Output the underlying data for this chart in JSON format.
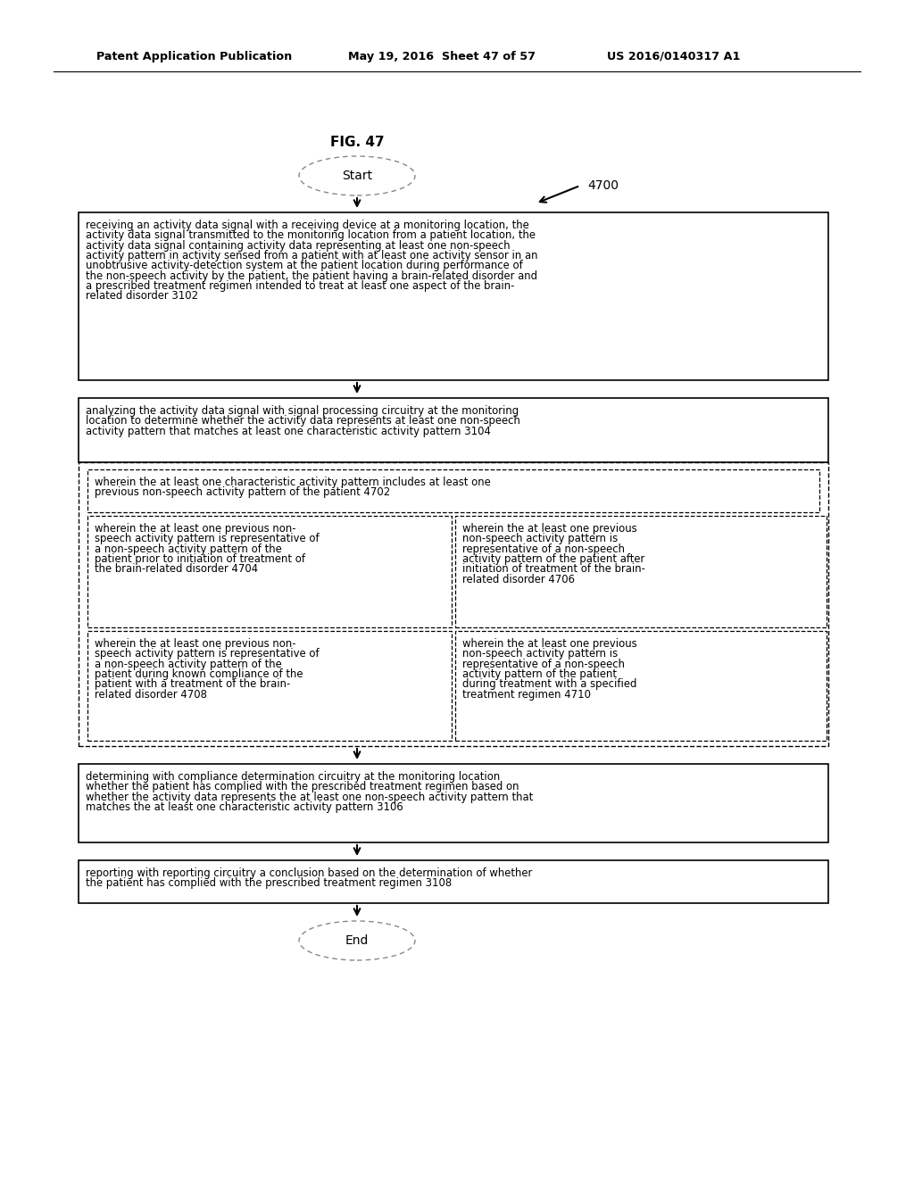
{
  "bg_color": "#ffffff",
  "header_text1": "Patent Application Publication",
  "header_text2": "May 19, 2016  Sheet 47 of 57",
  "header_text3": "US 2016/0140317 A1",
  "fig_label": "FIG. 47",
  "start_label": "Start",
  "end_label": "End",
  "label_4700": "4700",
  "box1_lines": [
    "receiving an activity data signal with a receiving device at a monitoring location, the",
    "activity data signal transmitted to the monitoring location from a patient location, the",
    "activity data signal containing activity data representing at least one non-speech",
    "activity pattern in activity sensed from a patient with at least one activity sensor in an",
    "unobtrusive activity-detection system at the patient location during performance of",
    "the non-speech activity by the patient, the patient having a brain-related disorder and",
    "a prescribed treatment regimen intended to treat at least one aspect of the brain-",
    "related disorder 3102"
  ],
  "box2_lines": [
    "analyzing the activity data signal with signal processing circuitry at the monitoring",
    "location to determine whether the activity data represents at least one non-speech",
    "activity pattern that matches at least one characteristic activity pattern 3104"
  ],
  "box3_lines": [
    "wherein the at least one characteristic activity pattern includes at least one",
    "previous non-speech activity pattern of the patient 4702"
  ],
  "box4a_lines": [
    "wherein the at least one previous non-",
    "speech activity pattern is representative of",
    "a non-speech activity pattern of the",
    "patient prior to initiation of treatment of",
    "the brain-related disorder 4704"
  ],
  "box4b_lines": [
    "wherein the at least one previous",
    "non-speech activity pattern is",
    "representative of a non-speech",
    "activity pattern of the patient after",
    "initiation of treatment of the brain-",
    "related disorder 4706"
  ],
  "box5a_lines": [
    "wherein the at least one previous non-",
    "speech activity pattern is representative of",
    "a non-speech activity pattern of the",
    "patient during known compliance of the",
    "patient with a treatment of the brain-",
    "related disorder 4708"
  ],
  "box5b_lines": [
    "wherein the at least one previous",
    "non-speech activity pattern is",
    "representative of a non-speech",
    "activity pattern of the patient",
    "during treatment with a specified",
    "treatment regimen 4710"
  ],
  "box6_lines": [
    "determining with compliance determination circuitry at the monitoring location",
    "whether the patient has complied with the prescribed treatment regimen based on",
    "whether the activity data represents the at least one non-speech activity pattern that",
    "matches the at least one characteristic activity pattern 3106"
  ],
  "box7_lines": [
    "reporting with reporting circuitry a conclusion based on the determination of whether",
    "the patient has complied with the prescribed treatment regimen 3108"
  ]
}
